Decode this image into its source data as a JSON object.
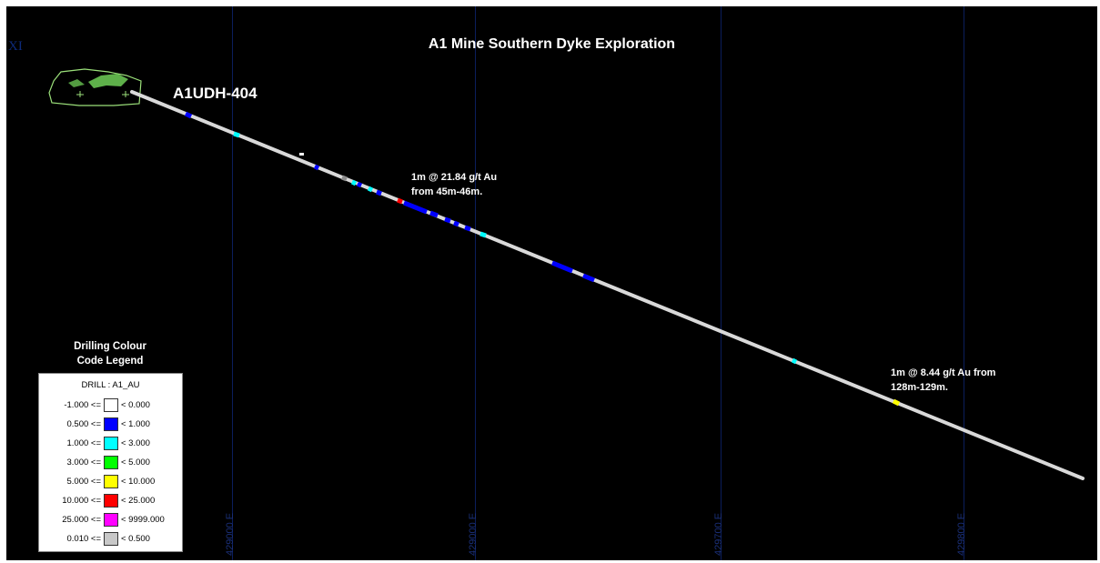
{
  "title": "A1 Mine Southern Dyke Exploration",
  "hole_label": "A1UDH-404",
  "grid_labels": [
    "429000 E",
    "429000 E",
    "429700 E",
    "429800 E"
  ],
  "corner_mark": "XI",
  "annotations": {
    "intercept1_line1": "1m @ 21.84 g/t Au",
    "intercept1_line2": "from 45m-46m.",
    "intercept2_line1": "1m @ 8.44 g/t Au from",
    "intercept2_line2": "128m-129m."
  },
  "legend": {
    "title_line1": "Drilling Colour",
    "title_line2": "Code Legend",
    "header": "DRILL : A1_AU",
    "rows": [
      {
        "lo": "-1.000 <=",
        "hi": "< 0.000",
        "color": "#ffffff"
      },
      {
        "lo": "0.500 <=",
        "hi": "< 1.000",
        "color": "#0000ff"
      },
      {
        "lo": "1.000 <=",
        "hi": "< 3.000",
        "color": "#00ffff"
      },
      {
        "lo": "3.000 <=",
        "hi": "< 5.000",
        "color": "#00ff00"
      },
      {
        "lo": "5.000 <=",
        "hi": "< 10.000",
        "color": "#ffff00"
      },
      {
        "lo": "10.000 <=",
        "hi": "< 25.000",
        "color": "#ff0000"
      },
      {
        "lo": "25.000 <=",
        "hi": "< 9999.000",
        "color": "#ff00ff"
      },
      {
        "lo": "0.010 <=",
        "hi": "< 0.500",
        "color": "#c8c8c8"
      }
    ]
  },
  "colors": {
    "background": "#000000",
    "drill_trace": "#d9d9d9",
    "pit_outline": "#9be07a"
  }
}
